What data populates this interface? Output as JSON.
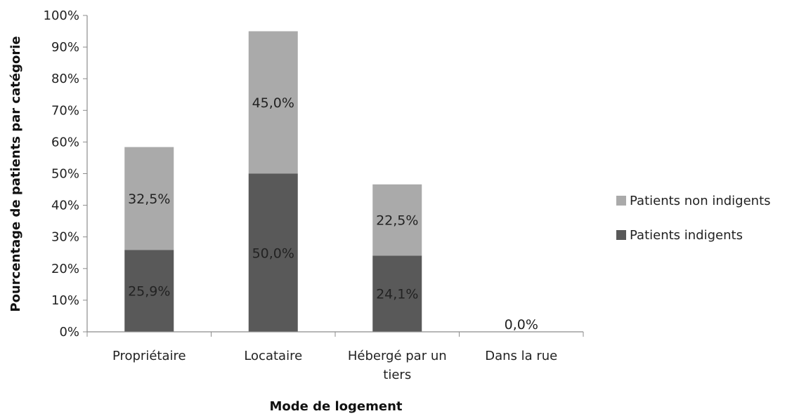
{
  "chart_data": {
    "type": "bar",
    "stacked": true,
    "categories": [
      [
        "Propriétaire"
      ],
      [
        "Locataire"
      ],
      [
        "Hébergé par un",
        "tiers"
      ],
      [
        "Dans la rue"
      ]
    ],
    "series": [
      {
        "name": "Patients indigents",
        "color": "#595959",
        "values": [
          25.9,
          50.0,
          24.1,
          0.0
        ],
        "labels": [
          "25,9%",
          "50,0%",
          "24,1%",
          "0,0%"
        ]
      },
      {
        "name": "Patients non indigents",
        "color": "#aaaaaa",
        "values": [
          32.5,
          45.0,
          22.5,
          0.0
        ],
        "labels": [
          "32,5%",
          "45,0%",
          "22,5%",
          ""
        ]
      }
    ],
    "xlabel": "Mode de logement",
    "ylabel": "Pourcentage de patients par catégorie",
    "ylim": [
      0,
      100
    ],
    "yticks": [
      0,
      10,
      20,
      30,
      40,
      50,
      60,
      70,
      80,
      90,
      100
    ],
    "ytick_labels": [
      "0%",
      "10%",
      "20%",
      "30%",
      "40%",
      "50%",
      "60%",
      "70%",
      "80%",
      "90%",
      "100%"
    ],
    "grid": false,
    "legend_position": "right",
    "legend_order": [
      "Patients non indigents",
      "Patients indigents"
    ]
  }
}
